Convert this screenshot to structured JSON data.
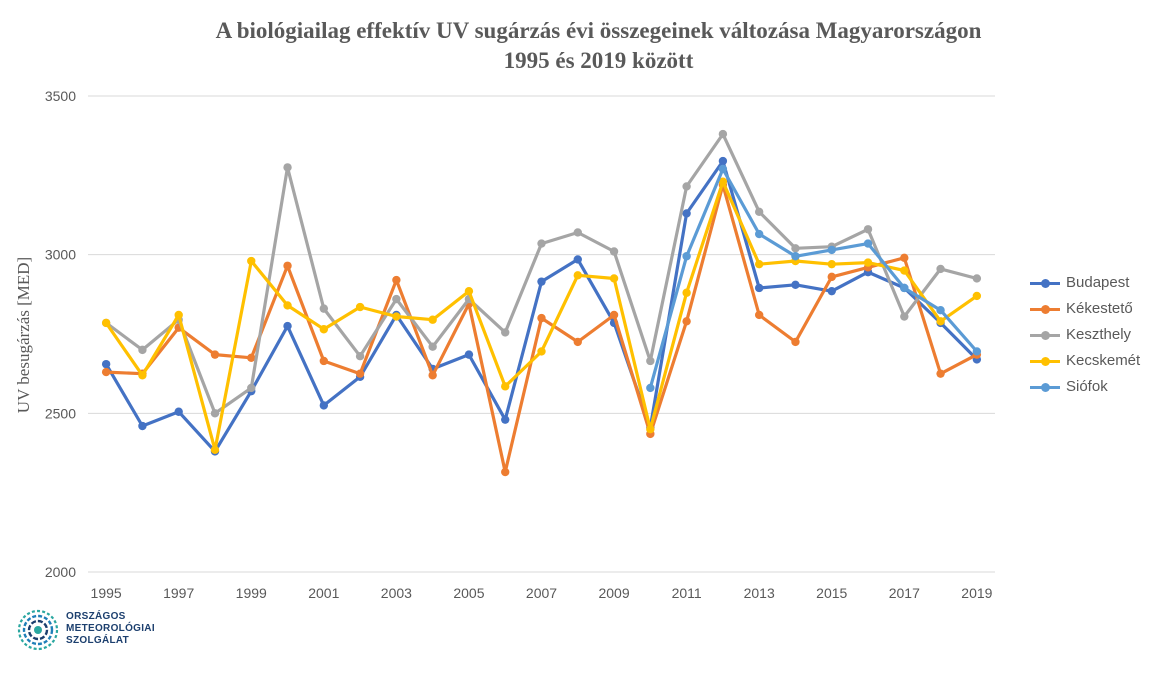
{
  "chart_data": {
    "type": "line",
    "title_line1": "A biológiailag effektív UV sugárzás évi összegeinek változása Magyarországon",
    "title_line2": "1995 és 2019 között",
    "ylabel": "UV besugárzás [MED]",
    "xlabel": "",
    "ylim": [
      2000,
      3500
    ],
    "yticks": [
      "2000",
      "2500",
      "3000",
      "3500"
    ],
    "yticks_values": [
      2000,
      2500,
      3000,
      3500
    ],
    "xticks": [
      "1995",
      "1997",
      "1999",
      "2001",
      "2003",
      "2005",
      "2007",
      "2009",
      "2011",
      "2013",
      "2015",
      "2017",
      "2019"
    ],
    "x": [
      1995,
      1996,
      1997,
      1998,
      1999,
      2000,
      2001,
      2002,
      2003,
      2004,
      2005,
      2006,
      2007,
      2008,
      2009,
      2010,
      2011,
      2012,
      2013,
      2014,
      2015,
      2016,
      2017,
      2018,
      2019
    ],
    "grid": "horizontal",
    "legend_position": "right",
    "series": [
      {
        "name": "Budapest",
        "color": "#4472c4",
        "values": [
          2655,
          2460,
          2505,
          2380,
          2570,
          2775,
          2525,
          2615,
          2810,
          2640,
          2685,
          2480,
          2915,
          2985,
          2785,
          2455,
          3130,
          3295,
          2895,
          2905,
          2885,
          2945,
          2895,
          2785,
          2670
        ]
      },
      {
        "name": "Kékestető",
        "color": "#ed7d31",
        "values": [
          2630,
          2625,
          2770,
          2685,
          2675,
          2965,
          2665,
          2625,
          2920,
          2620,
          2845,
          2315,
          2800,
          2725,
          2810,
          2435,
          2790,
          3220,
          2810,
          2725,
          2930,
          2960,
          2990,
          2625,
          2685
        ]
      },
      {
        "name": "Keszthely",
        "color": "#a5a5a5",
        "values": [
          2785,
          2700,
          2795,
          2500,
          2580,
          3275,
          2830,
          2680,
          2860,
          2710,
          2860,
          2755,
          3035,
          3070,
          3010,
          2665,
          3215,
          3380,
          3135,
          3020,
          3025,
          3080,
          2805,
          2955,
          2925
        ]
      },
      {
        "name": "Kecskemét",
        "color": "#ffc000",
        "values": [
          2785,
          2620,
          2810,
          2385,
          2980,
          2840,
          2765,
          2835,
          2805,
          2795,
          2885,
          2585,
          2695,
          2935,
          2925,
          2450,
          2880,
          3230,
          2970,
          2980,
          2970,
          2975,
          2950,
          2790,
          2870
        ]
      },
      {
        "name": "Siófok",
        "color": "#5b9bd5",
        "values": [
          null,
          null,
          null,
          null,
          null,
          null,
          null,
          null,
          null,
          null,
          null,
          null,
          null,
          null,
          null,
          2580,
          2995,
          3270,
          3065,
          2995,
          3015,
          3035,
          2895,
          2825,
          2695
        ]
      }
    ]
  },
  "logo": {
    "line1": "ORSZÁGOS",
    "line2": "METEOROLÓGIAI",
    "line3": "SZOLGÁLAT",
    "color": "#1c3f6e",
    "accent": "#2aa7a0"
  }
}
